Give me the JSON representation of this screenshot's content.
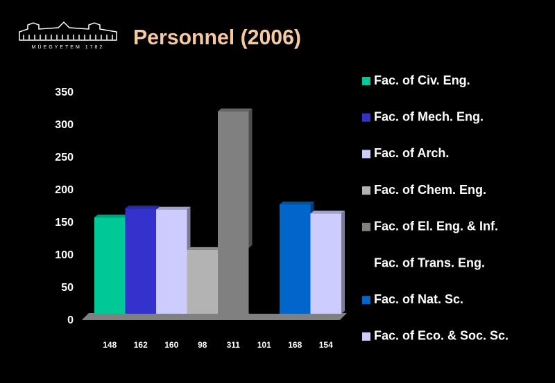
{
  "logo_text": "MŰEGYETEM 1782",
  "chart_data": {
    "type": "bar",
    "title": "Personnel (2006)",
    "categories": [
      "Fac. of Civ. Eng.",
      "Fac. of Mech. Eng.",
      "Fac. of Arch.",
      "Fac. of Chem. Eng.",
      "Fac. of El. Eng. & Inf.",
      "Fac. of Trans. Eng.",
      "Fac. of Nat. Sc.",
      "Fac. of Eco. & Soc. Sc."
    ],
    "values": [
      148,
      162,
      160,
      98,
      311,
      101,
      168,
      154
    ],
    "colors": [
      "#00c896",
      "#3333cc",
      "#ccccff",
      "#b3b3b3",
      "#808080",
      "#000000",
      "#0066cc",
      "#ccccff"
    ],
    "ylim": [
      0,
      350
    ],
    "yticks": [
      0,
      50,
      100,
      150,
      200,
      250,
      300,
      350
    ],
    "legend": "right"
  }
}
